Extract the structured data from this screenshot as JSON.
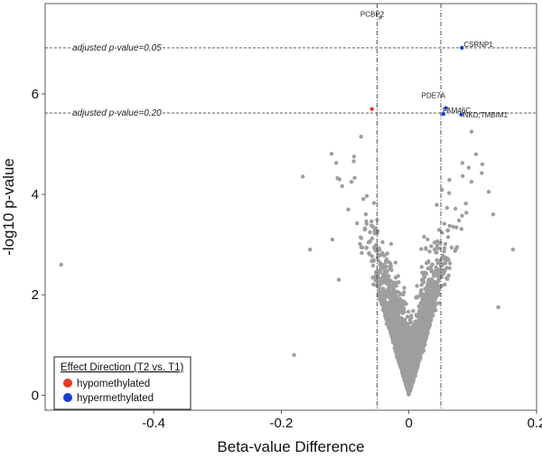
{
  "chart_data": {
    "type": "scatter",
    "title": "",
    "xlabel": "Beta-value Difference",
    "ylabel": "-log10 p-value",
    "xlim": [
      -0.57,
      0.2
    ],
    "ylim": [
      -0.3,
      7.8
    ],
    "x_ticks": [
      -0.4,
      -0.2,
      0,
      0.2
    ],
    "x_tick_labels": [
      "-0.4",
      "-0.2",
      "0",
      "0.2"
    ],
    "y_ticks": [
      0,
      2,
      4,
      6
    ],
    "y_tick_labels": [
      "0",
      "2",
      "4",
      "6"
    ],
    "grid": false,
    "vertical_thresholds": [
      -0.05,
      0.05
    ],
    "horizontal_thresholds": [
      {
        "y": 6.92,
        "label": "adjusted p-value=0.05"
      },
      {
        "y": 5.62,
        "label": "adjusted p-value=0.20"
      }
    ],
    "colors": {
      "background_points": "#9e9e9e",
      "hypomethylated": "#e8392b",
      "hypermethylated": "#1b3fd0",
      "threshold_line": "#444444"
    },
    "highlighted_points": [
      {
        "label": "PCBP2",
        "x": -0.045,
        "y": 7.52,
        "group": "background"
      },
      {
        "label": "CSRNP1",
        "x": 0.083,
        "y": 6.92,
        "group": "hypermethylated"
      },
      {
        "label": "PDE7A",
        "x": 0.058,
        "y": 5.72,
        "group": "hypermethylated"
      },
      {
        "label": "FAM46C",
        "x": 0.054,
        "y": 5.6,
        "group": "hypermethylated"
      },
      {
        "label": "NKD;TMBIM1",
        "x": 0.082,
        "y": 5.59,
        "group": "hypermethylated"
      },
      {
        "label": "",
        "x": -0.058,
        "y": 5.7,
        "group": "hypomethylated"
      }
    ],
    "outlier_points": [
      {
        "x": -0.545,
        "y": 2.6
      },
      {
        "x": -0.18,
        "y": 0.8
      },
      {
        "x": -0.155,
        "y": 2.9
      },
      {
        "x": 0.163,
        "y": 2.9
      },
      {
        "x": 0.098,
        "y": 5.25
      },
      {
        "x": 0.105,
        "y": 4.8
      },
      {
        "x": 0.115,
        "y": 4.6
      },
      {
        "x": 0.098,
        "y": 4.25
      },
      {
        "x": 0.132,
        "y": 3.6
      },
      {
        "x": 0.14,
        "y": 1.75
      },
      {
        "x": 0.125,
        "y": 4.05
      },
      {
        "x": -0.09,
        "y": 4.25
      },
      {
        "x": -0.075,
        "y": 5.15
      },
      {
        "x": -0.095,
        "y": 3.7
      },
      {
        "x": -0.12,
        "y": 3.1
      },
      {
        "x": -0.11,
        "y": 2.3
      }
    ],
    "legend": {
      "title": "Effect Direction (T2 vs. T1)",
      "placement": "bottom-left",
      "entries": [
        {
          "label": "hypomethylated",
          "color": "#e8392b"
        },
        {
          "label": "hypermethylated",
          "color": "#1b3fd0"
        }
      ]
    }
  }
}
